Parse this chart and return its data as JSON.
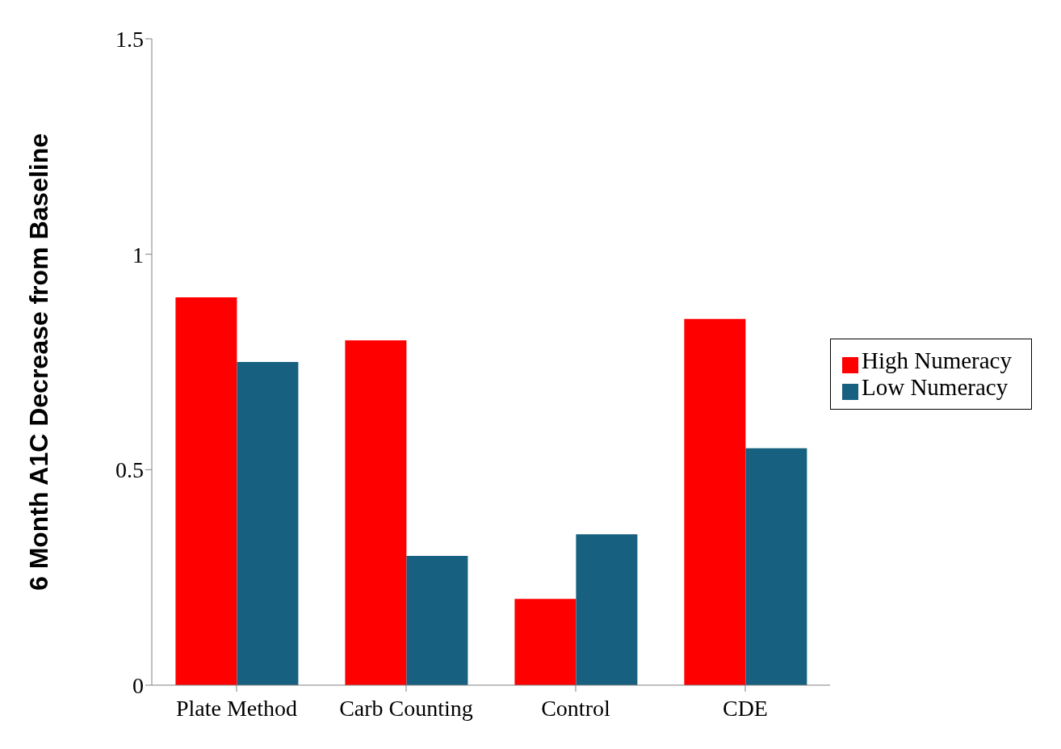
{
  "chart_data": {
    "type": "bar",
    "ylabel": "6 Month A1C Decrease from Baseline",
    "categories": [
      "Plate Method",
      "Carb Counting",
      "Control",
      "CDE"
    ],
    "series": [
      {
        "name": "High Numeracy",
        "color": "#ff0000",
        "values": [
          0.9,
          0.8,
          0.2,
          0.85
        ]
      },
      {
        "name": "Low Numeracy",
        "color": "#17607f",
        "values": [
          0.75,
          0.3,
          0.35,
          0.55
        ]
      }
    ],
    "ylim": [
      0,
      1.5
    ],
    "yticks": [
      0,
      0.5,
      1,
      1.5
    ],
    "grid": false,
    "legend": "right"
  }
}
